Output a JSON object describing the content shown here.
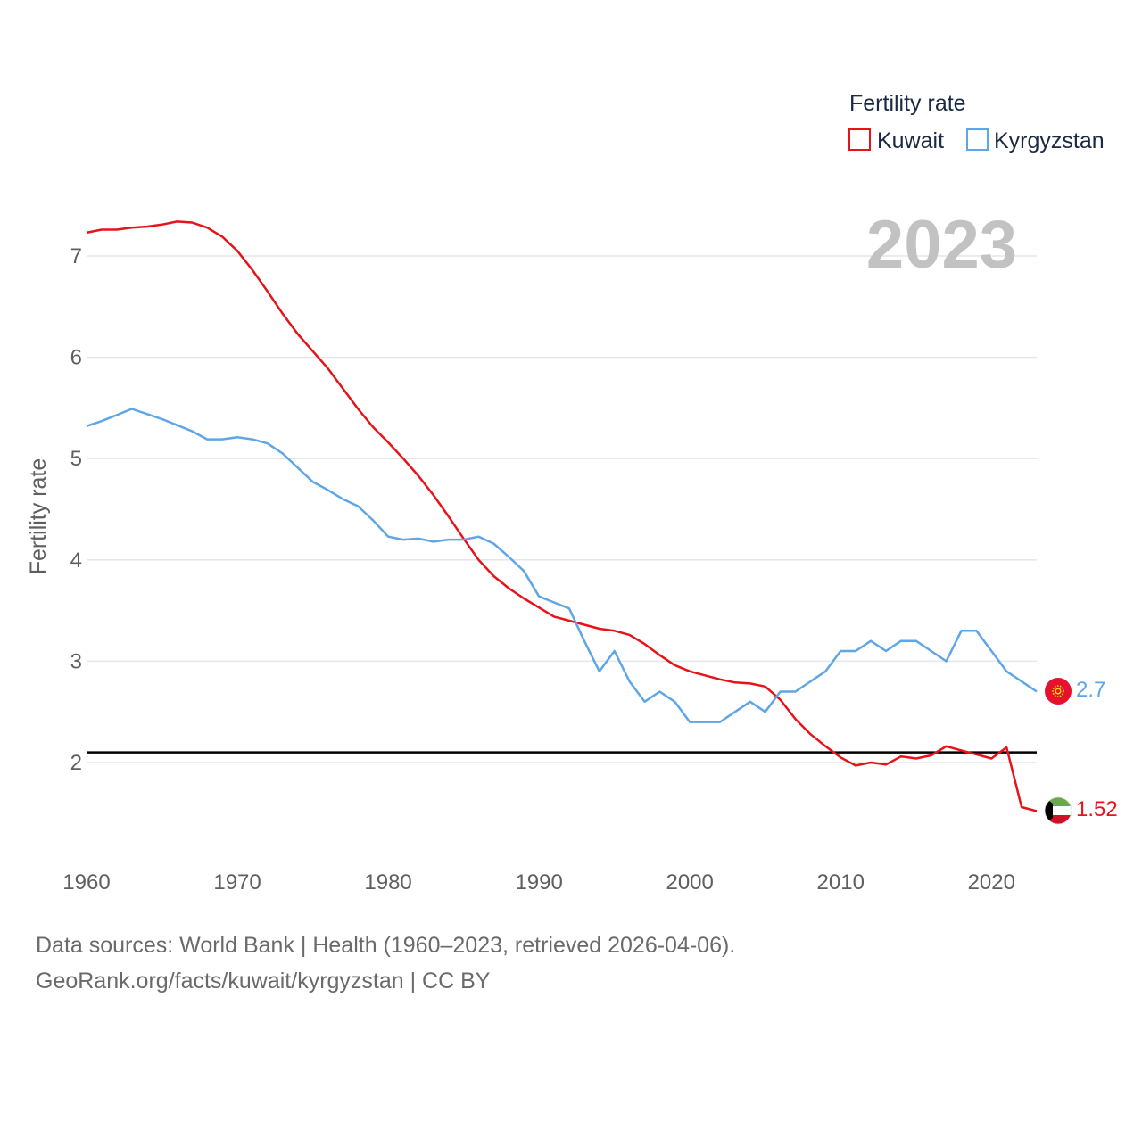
{
  "chart_data": {
    "type": "line",
    "title": "",
    "xlabel": "",
    "ylabel": "Fertility rate",
    "xlim": [
      1960,
      2023
    ],
    "ylim": [
      1.0,
      7.6
    ],
    "x_ticks": [
      1960,
      1970,
      1980,
      1990,
      2000,
      2010,
      2020
    ],
    "y_ticks": [
      2,
      3,
      4,
      5,
      6,
      7
    ],
    "x_tick_labels": [
      "1960",
      "1970",
      "1980",
      "1990",
      "2000",
      "2010",
      "2020"
    ],
    "y_tick_labels": [
      "2",
      "3",
      "4",
      "5",
      "6",
      "7"
    ],
    "grid": true,
    "year_label": "2023",
    "reference_line": 2.1,
    "legend": {
      "title": "Fertility rate",
      "position": "top-right",
      "entries": [
        "Kuwait",
        "Kyrgyzstan"
      ]
    },
    "x": [
      1960,
      1961,
      1962,
      1963,
      1964,
      1965,
      1966,
      1967,
      1968,
      1969,
      1970,
      1971,
      1972,
      1973,
      1974,
      1975,
      1976,
      1977,
      1978,
      1979,
      1980,
      1981,
      1982,
      1983,
      1984,
      1985,
      1986,
      1987,
      1988,
      1989,
      1990,
      1991,
      1992,
      1993,
      1994,
      1995,
      1996,
      1997,
      1998,
      1999,
      2000,
      2001,
      2002,
      2003,
      2004,
      2005,
      2006,
      2007,
      2008,
      2009,
      2010,
      2011,
      2012,
      2013,
      2014,
      2015,
      2016,
      2017,
      2018,
      2019,
      2020,
      2021,
      2022,
      2023
    ],
    "series": [
      {
        "name": "Kuwait",
        "color": "#e8131a",
        "end_label": "1.52",
        "flag": "kuwait-flag",
        "values": [
          7.23,
          7.26,
          7.26,
          7.28,
          7.29,
          7.31,
          7.34,
          7.33,
          7.28,
          7.19,
          7.05,
          6.86,
          6.65,
          6.43,
          6.23,
          6.06,
          5.89,
          5.69,
          5.49,
          5.31,
          5.16,
          5.0,
          4.83,
          4.64,
          4.43,
          4.21,
          4.0,
          3.84,
          3.72,
          3.62,
          3.53,
          3.44,
          3.4,
          3.36,
          3.32,
          3.3,
          3.26,
          3.17,
          3.06,
          2.96,
          2.9,
          2.86,
          2.82,
          2.79,
          2.78,
          2.75,
          2.62,
          2.43,
          2.28,
          2.16,
          2.05,
          1.97,
          2.0,
          1.98,
          2.06,
          2.04,
          2.07,
          2.16,
          2.12,
          2.08,
          2.04,
          2.15,
          1.56,
          1.52
        ]
      },
      {
        "name": "Kyrgyzstan",
        "color": "#5fa6e6",
        "end_label": "2.7",
        "flag": "kyrgyzstan-flag",
        "values": [
          5.32,
          5.37,
          5.43,
          5.49,
          5.44,
          5.39,
          5.33,
          5.27,
          5.19,
          5.19,
          5.21,
          5.19,
          5.15,
          5.05,
          4.91,
          4.77,
          4.69,
          4.6,
          4.53,
          4.39,
          4.23,
          4.2,
          4.21,
          4.18,
          4.2,
          4.2,
          4.23,
          4.16,
          4.03,
          3.89,
          3.64,
          3.58,
          3.52,
          3.2,
          2.9,
          3.1,
          2.8,
          2.6,
          2.7,
          2.6,
          2.4,
          2.4,
          2.4,
          2.5,
          2.6,
          2.5,
          2.7,
          2.7,
          2.8,
          2.9,
          3.1,
          3.1,
          3.2,
          3.1,
          3.2,
          3.2,
          3.1,
          3.0,
          3.3,
          3.3,
          3.1,
          2.9,
          2.8,
          2.7
        ]
      }
    ]
  },
  "footer": {
    "line1": "Data sources: World Bank | Health (1960–2023, retrieved 2026-04-06).",
    "line2": "GeoRank.org/facts/kuwait/kyrgyzstan | CC BY"
  }
}
